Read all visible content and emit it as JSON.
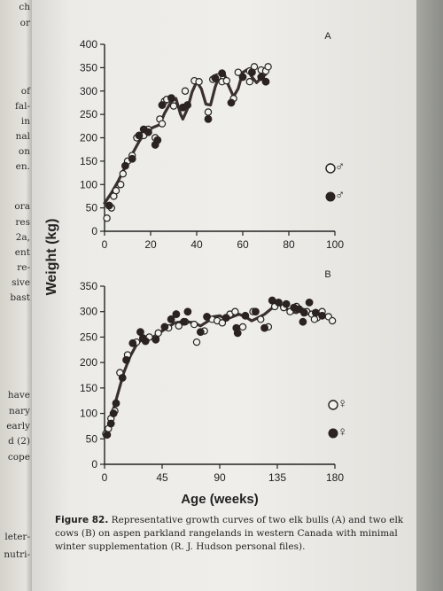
{
  "left_page_fragments": [
    "ch",
    "or",
    "of",
    "fal-",
    "in",
    "nal",
    "on",
    "en.",
    "ora",
    "res",
    "2a,",
    "ent",
    "re-",
    "sive",
    "bast",
    "have",
    "nary",
    "early",
    "d (2)",
    "cope",
    "leter-",
    "nutri-"
  ],
  "caption": {
    "figure_label": "Figure 82.",
    "text": "Representative growth curves of two elk bulls (A) and two elk cows (B) on aspen parkland rangelands in western Canada with minimal winter supplementation (R. J. Hudson personal files)."
  },
  "chart_data": [
    {
      "panel": "A",
      "type": "scatter",
      "xlim": [
        0,
        100
      ],
      "ylim": [
        0,
        400
      ],
      "x_ticks": [
        "0",
        "20",
        "40",
        "60",
        "80",
        "100"
      ],
      "y_ticks": [
        "0",
        "50",
        "100",
        "150",
        "200",
        "250",
        "300",
        "350",
        "400"
      ],
      "legend": [
        {
          "symbol": "♂",
          "marker": "open"
        },
        {
          "symbol": "♂",
          "marker": "filled"
        }
      ],
      "legend_placement": "right",
      "fitted_curve": [
        [
          0,
          60
        ],
        [
          3,
          82
        ],
        [
          6,
          108
        ],
        [
          9,
          138
        ],
        [
          12,
          165
        ],
        [
          15,
          192
        ],
        [
          18,
          214
        ],
        [
          21,
          222
        ],
        [
          24,
          228
        ],
        [
          26,
          252
        ],
        [
          29,
          278
        ],
        [
          31,
          284
        ],
        [
          33,
          250
        ],
        [
          34,
          240
        ],
        [
          36,
          262
        ],
        [
          38,
          298
        ],
        [
          40,
          320
        ],
        [
          42,
          305
        ],
        [
          44,
          272
        ],
        [
          46,
          270
        ],
        [
          48,
          308
        ],
        [
          50,
          336
        ],
        [
          52,
          336
        ],
        [
          54,
          310
        ],
        [
          56,
          288
        ],
        [
          58,
          305
        ],
        [
          60,
          340
        ],
        [
          62,
          346
        ],
        [
          64,
          330
        ],
        [
          66,
          318
        ],
        [
          68,
          328
        ],
        [
          70,
          336
        ]
      ],
      "series": [
        {
          "marker": "open",
          "points": [
            [
              1,
              28
            ],
            [
              3,
              50
            ],
            [
              4,
              75
            ],
            [
              5,
              87
            ],
            [
              7,
              100
            ],
            [
              8,
              123
            ],
            [
              10,
              150
            ],
            [
              12,
              162
            ],
            [
              14,
              200
            ],
            [
              17,
              205
            ],
            [
              19,
              218
            ],
            [
              22,
              200
            ],
            [
              24,
              240
            ],
            [
              25,
              230
            ],
            [
              26,
              278
            ],
            [
              27,
              282
            ],
            [
              30,
              268
            ],
            [
              35,
              300
            ],
            [
              39,
              322
            ],
            [
              41,
              320
            ],
            [
              45,
              255
            ],
            [
              47,
              325
            ],
            [
              49,
              330
            ],
            [
              51,
              320
            ],
            [
              53,
              322
            ],
            [
              56,
              284
            ],
            [
              58,
              340
            ],
            [
              63,
              343
            ],
            [
              65,
              352
            ],
            [
              68,
              345
            ],
            [
              70,
              343
            ],
            [
              71,
              352
            ],
            [
              63,
              320
            ]
          ]
        },
        {
          "marker": "filled",
          "points": [
            [
              2,
              55
            ],
            [
              9,
              140
            ],
            [
              12,
              155
            ],
            [
              15,
              205
            ],
            [
              17,
              218
            ],
            [
              19,
              212
            ],
            [
              22,
              185
            ],
            [
              23,
              195
            ],
            [
              25,
              270
            ],
            [
              29,
              285
            ],
            [
              34,
              265
            ],
            [
              36,
              270
            ],
            [
              45,
              240
            ],
            [
              48,
              328
            ],
            [
              51,
              338
            ],
            [
              55,
              275
            ],
            [
              60,
              330
            ],
            [
              64,
              340
            ],
            [
              68,
              330
            ],
            [
              70,
              320
            ]
          ]
        }
      ]
    },
    {
      "panel": "B",
      "type": "scatter",
      "xlim": [
        0,
        180
      ],
      "ylim": [
        0,
        350
      ],
      "x_ticks": [
        "0",
        "45",
        "90",
        "135",
        "180"
      ],
      "y_ticks": [
        "0",
        "50",
        "100",
        "150",
        "200",
        "250",
        "300",
        "350"
      ],
      "xlabel": "Age (weeks)",
      "legend": [
        {
          "symbol": "♀",
          "marker": "open"
        },
        {
          "symbol": "♀",
          "marker": "filled"
        }
      ],
      "legend_placement": "right",
      "fitted_curve": [
        [
          0,
          55
        ],
        [
          3,
          72
        ],
        [
          6,
          100
        ],
        [
          10,
          135
        ],
        [
          15,
          180
        ],
        [
          20,
          212
        ],
        [
          25,
          235
        ],
        [
          30,
          248
        ],
        [
          35,
          250
        ],
        [
          40,
          250
        ],
        [
          45,
          262
        ],
        [
          50,
          270
        ],
        [
          55,
          278
        ],
        [
          60,
          280
        ],
        [
          65,
          280
        ],
        [
          70,
          278
        ],
        [
          75,
          272
        ],
        [
          80,
          280
        ],
        [
          85,
          290
        ],
        [
          90,
          292
        ],
        [
          95,
          285
        ],
        [
          100,
          290
        ],
        [
          105,
          295
        ],
        [
          110,
          290
        ],
        [
          115,
          282
        ],
        [
          120,
          288
        ],
        [
          125,
          295
        ],
        [
          130,
          305
        ],
        [
          135,
          315
        ],
        [
          140,
          310
        ],
        [
          145,
          300
        ],
        [
          150,
          298
        ],
        [
          155,
          305
        ],
        [
          160,
          300
        ],
        [
          165,
          292
        ],
        [
          170,
          290
        ],
        [
          175,
          290
        ]
      ],
      "series": [
        {
          "marker": "open",
          "points": [
            [
              1,
              60
            ],
            [
              3,
              70
            ],
            [
              5,
              90
            ],
            [
              8,
              105
            ],
            [
              12,
              180
            ],
            [
              18,
              215
            ],
            [
              25,
              240
            ],
            [
              35,
              250
            ],
            [
              40,
              248
            ],
            [
              42,
              258
            ],
            [
              50,
              268
            ],
            [
              58,
              272
            ],
            [
              63,
              280
            ],
            [
              70,
              275
            ],
            [
              72,
              240
            ],
            [
              78,
              262
            ],
            [
              84,
              285
            ],
            [
              88,
              282
            ],
            [
              92,
              278
            ],
            [
              98,
              295
            ],
            [
              102,
              300
            ],
            [
              108,
              270
            ],
            [
              116,
              300
            ],
            [
              122,
              285
            ],
            [
              128,
              270
            ],
            [
              133,
              310
            ],
            [
              140,
              308
            ],
            [
              145,
              300
            ],
            [
              150,
              310
            ],
            [
              158,
              300
            ],
            [
              162,
              295
            ],
            [
              166,
              288
            ],
            [
              170,
              300
            ],
            [
              175,
              290
            ],
            [
              178,
              282
            ],
            [
              164,
              285
            ]
          ]
        },
        {
          "marker": "filled",
          "points": [
            [
              2,
              58
            ],
            [
              5,
              80
            ],
            [
              7,
              100
            ],
            [
              9,
              120
            ],
            [
              14,
              170
            ],
            [
              17,
              205
            ],
            [
              22,
              238
            ],
            [
              28,
              260
            ],
            [
              32,
              242
            ],
            [
              40,
              245
            ],
            [
              47,
              270
            ],
            [
              52,
              285
            ],
            [
              56,
              295
            ],
            [
              62,
              280
            ],
            [
              65,
              300
            ],
            [
              75,
              260
            ],
            [
              80,
              290
            ],
            [
              95,
              288
            ],
            [
              103,
              268
            ],
            [
              104,
              258
            ],
            [
              110,
              292
            ],
            [
              118,
              300
            ],
            [
              125,
              268
            ],
            [
              131,
              322
            ],
            [
              136,
              318
            ],
            [
              142,
              315
            ],
            [
              148,
              308
            ],
            [
              152,
              305
            ],
            [
              156,
              298
            ],
            [
              160,
              318
            ],
            [
              165,
              298
            ],
            [
              170,
              292
            ],
            [
              155,
              280
            ],
            [
              30,
              248
            ]
          ]
        }
      ]
    }
  ]
}
